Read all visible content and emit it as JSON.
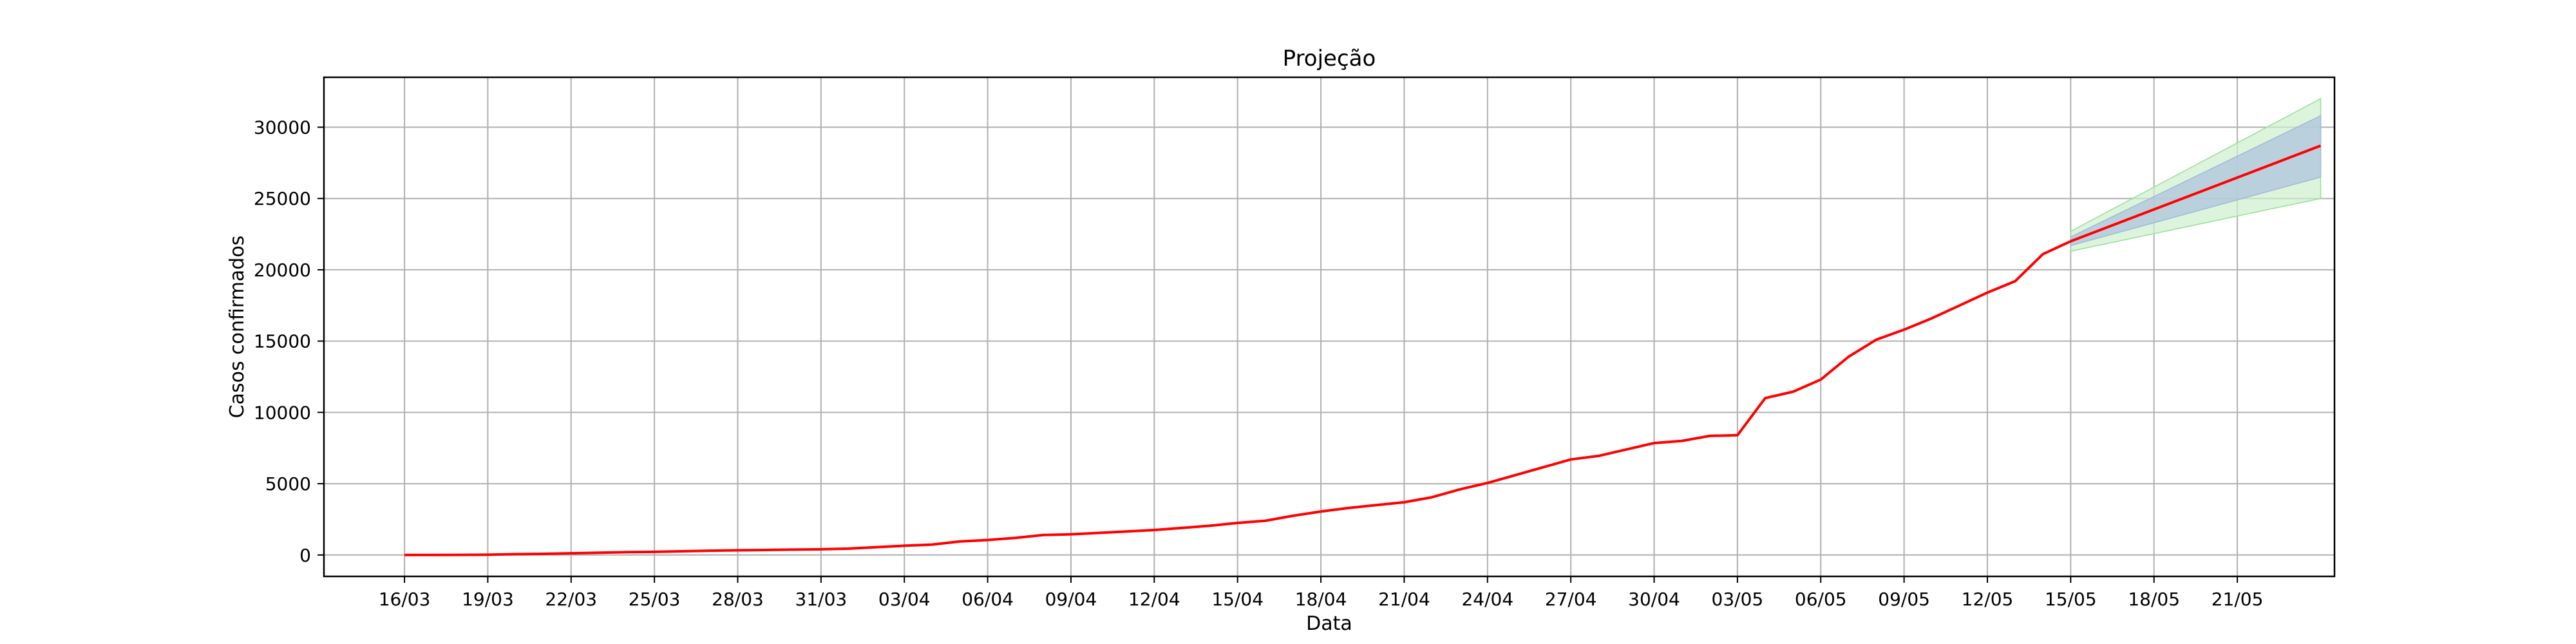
{
  "chart_data": {
    "type": "line",
    "title": "Projeção",
    "xlabel": "Data",
    "ylabel": "Casos confirmados",
    "x_ticks": [
      "16/03",
      "19/03",
      "22/03",
      "25/03",
      "28/03",
      "31/03",
      "03/04",
      "06/04",
      "09/04",
      "12/04",
      "15/04",
      "18/04",
      "21/04",
      "24/04",
      "27/04",
      "30/04",
      "03/05",
      "06/05",
      "09/05",
      "12/05",
      "15/05",
      "18/05",
      "21/05"
    ],
    "y_ticks": [
      0,
      5000,
      10000,
      15000,
      20000,
      25000,
      30000
    ],
    "ylim": [
      -1500,
      33500
    ],
    "x_day_range": [
      -2.9,
      69.5
    ],
    "grid": true,
    "colors": {
      "observed": "#ff0000",
      "projection": "#ff0000",
      "band_inner": "#b0c4de",
      "band_outer": "#ccf0cc",
      "grid": "#b0b0b0"
    },
    "series": [
      {
        "values": [
          [
            0,
            0
          ],
          [
            1,
            0
          ],
          [
            2,
            10
          ],
          [
            3,
            20
          ],
          [
            4,
            60
          ],
          [
            5,
            80
          ],
          [
            6,
            120
          ],
          [
            7,
            160
          ],
          [
            8,
            200
          ],
          [
            9,
            220
          ],
          [
            10,
            260
          ],
          [
            11,
            300
          ],
          [
            12,
            330
          ],
          [
            13,
            350
          ],
          [
            14,
            380
          ],
          [
            15,
            400
          ],
          [
            16,
            450
          ],
          [
            17,
            550
          ],
          [
            18,
            650
          ],
          [
            19,
            730
          ],
          [
            20,
            950
          ],
          [
            21,
            1050
          ],
          [
            22,
            1200
          ],
          [
            23,
            1400
          ],
          [
            24,
            1450
          ],
          [
            25,
            1550
          ],
          [
            26,
            1650
          ],
          [
            27,
            1750
          ],
          [
            28,
            1900
          ],
          [
            29,
            2050
          ],
          [
            30,
            2250
          ],
          [
            31,
            2400
          ],
          [
            32,
            2750
          ],
          [
            33,
            3050
          ],
          [
            34,
            3300
          ],
          [
            35,
            3500
          ],
          [
            36,
            3700
          ],
          [
            37,
            4050
          ],
          [
            38,
            4600
          ],
          [
            39,
            5050
          ],
          [
            40,
            5600
          ],
          [
            41,
            6150
          ],
          [
            42,
            6700
          ],
          [
            43,
            6950
          ],
          [
            44,
            7400
          ],
          [
            45,
            7850
          ],
          [
            46,
            8000
          ],
          [
            47,
            8350
          ],
          [
            48,
            8400
          ],
          [
            49,
            11000
          ],
          [
            50,
            11450
          ],
          [
            51,
            12300
          ],
          [
            52,
            13900
          ],
          [
            53,
            15100
          ],
          [
            54,
            15800
          ],
          [
            55,
            16600
          ],
          [
            56,
            17500
          ],
          [
            57,
            18400
          ],
          [
            58,
            19200
          ],
          [
            59,
            21100
          ],
          [
            60,
            22000
          ]
        ]
      },
      {
        "values": [
          [
            60,
            22000
          ],
          [
            69,
            28700
          ]
        ],
        "inner_lower": [
          [
            60,
            21700
          ],
          [
            69,
            26500
          ]
        ],
        "inner_upper": [
          [
            60,
            22300
          ],
          [
            69,
            30800
          ]
        ],
        "outer_lower": [
          [
            60,
            21300
          ],
          [
            69,
            25000
          ]
        ],
        "outer_upper": [
          [
            60,
            22700
          ],
          [
            69,
            32000
          ]
        ]
      }
    ]
  }
}
